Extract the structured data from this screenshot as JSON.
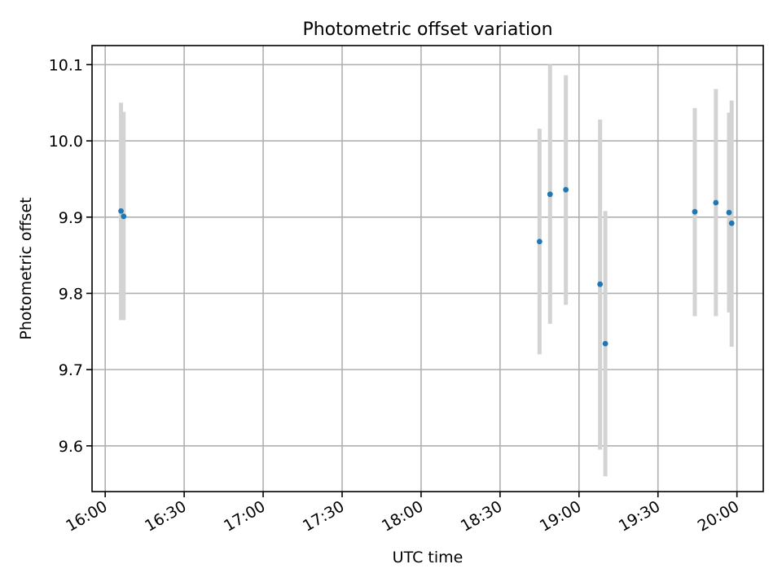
{
  "chart_data": {
    "type": "scatter",
    "title": "Photometric offset variation",
    "xlabel": "UTC time",
    "ylabel": "Photometric offset",
    "xlim": [
      "15:55",
      "20:10"
    ],
    "ylim": [
      9.54,
      10.125
    ],
    "x_ticks": [
      "16:00",
      "16:30",
      "17:00",
      "17:30",
      "18:00",
      "18:30",
      "19:00",
      "19:30",
      "20:00"
    ],
    "y_ticks": [
      "9.6",
      "9.7",
      "9.8",
      "9.9",
      "10.0",
      "10.1"
    ],
    "grid": true,
    "colors": {
      "point": "#1f77b4",
      "errorbar": "#d3d3d3"
    },
    "series": [
      {
        "points": [
          {
            "x": "16:06",
            "y": 9.908,
            "ylow": 9.765,
            "yhigh": 10.05
          },
          {
            "x": "16:07",
            "y": 9.901,
            "ylow": 9.765,
            "yhigh": 10.038
          },
          {
            "x": "18:45",
            "y": 9.868,
            "ylow": 9.72,
            "yhigh": 10.016
          },
          {
            "x": "18:49",
            "y": 9.93,
            "ylow": 9.76,
            "yhigh": 10.1
          },
          {
            "x": "18:55",
            "y": 9.936,
            "ylow": 9.785,
            "yhigh": 10.086
          },
          {
            "x": "19:08",
            "y": 9.812,
            "ylow": 9.595,
            "yhigh": 10.028
          },
          {
            "x": "19:10",
            "y": 9.734,
            "ylow": 9.56,
            "yhigh": 9.908
          },
          {
            "x": "19:44",
            "y": 9.907,
            "ylow": 9.77,
            "yhigh": 10.043
          },
          {
            "x": "19:52",
            "y": 9.919,
            "ylow": 9.77,
            "yhigh": 10.068
          },
          {
            "x": "19:57",
            "y": 9.906,
            "ylow": 9.775,
            "yhigh": 10.037
          },
          {
            "x": "19:58",
            "y": 9.892,
            "ylow": 9.73,
            "yhigh": 10.053
          }
        ]
      }
    ]
  }
}
